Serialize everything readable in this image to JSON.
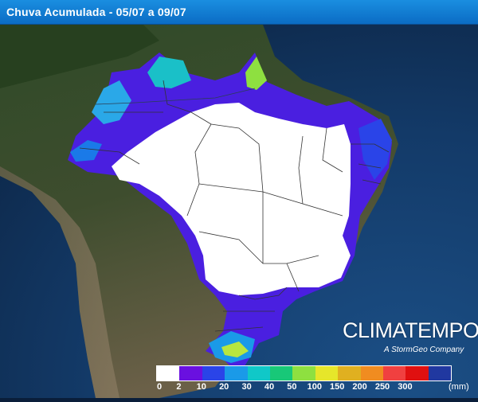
{
  "header": {
    "title": "Chuva Acumulada - 05/07 a 09/07"
  },
  "brand": {
    "name": "CLIMATEMPO",
    "tagline": "A StormGeo Company"
  },
  "legend": {
    "unit": "(mm)",
    "classes": [
      {
        "label": "0",
        "color": "#ffffff"
      },
      {
        "label": "2",
        "color": "#6a10e0"
      },
      {
        "label": "10",
        "color": "#2a44e8"
      },
      {
        "label": "20",
        "color": "#1a9ae8"
      },
      {
        "label": "30",
        "color": "#10c8c8"
      },
      {
        "label": "40",
        "color": "#18c878"
      },
      {
        "label": "50",
        "color": "#8ee040"
      },
      {
        "label": "100",
        "color": "#e6e62a"
      },
      {
        "label": "150",
        "color": "#e0b020"
      },
      {
        "label": "200",
        "color": "#f08c20"
      },
      {
        "label": "250",
        "color": "#f04040"
      },
      {
        "label": "300",
        "color": "#e01010"
      },
      {
        "label": "",
        "color": "#2038a0"
      }
    ]
  }
}
